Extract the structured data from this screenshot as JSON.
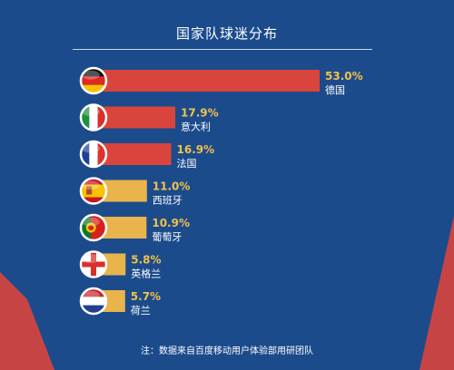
{
  "chart_data": {
    "type": "bar",
    "orientation": "horizontal",
    "title": "国家队球迷分布",
    "categories": [
      "德国",
      "意大利",
      "法国",
      "西班牙",
      "葡萄牙",
      "英格兰",
      "荷兰"
    ],
    "values": [
      53.0,
      17.9,
      16.9,
      11.0,
      10.9,
      5.8,
      5.7
    ],
    "value_labels": [
      "53.0%",
      "17.9%",
      "16.9%",
      "11.0%",
      "10.9%",
      "5.8%",
      "5.7%"
    ],
    "flag_icons": [
      "flag-germany-icon",
      "flag-italy-icon",
      "flag-france-icon",
      "flag-spain-icon",
      "flag-portugal-icon",
      "flag-england-icon",
      "flag-netherlands-icon"
    ],
    "bar_colors": [
      "#d9453c",
      "#d9453c",
      "#d9453c",
      "#e9b44c",
      "#e9b44c",
      "#e9b44c",
      "#e9b44c"
    ],
    "grid": false,
    "legend": "none"
  },
  "note": "注：数据来自百度移动用户体验部用研团队",
  "colors": {
    "background": "#1c4b8c",
    "accent_red": "#d9453c",
    "accent_gold": "#e9b44c",
    "value_text": "#f1c24a",
    "label_text": "#ffffff"
  }
}
